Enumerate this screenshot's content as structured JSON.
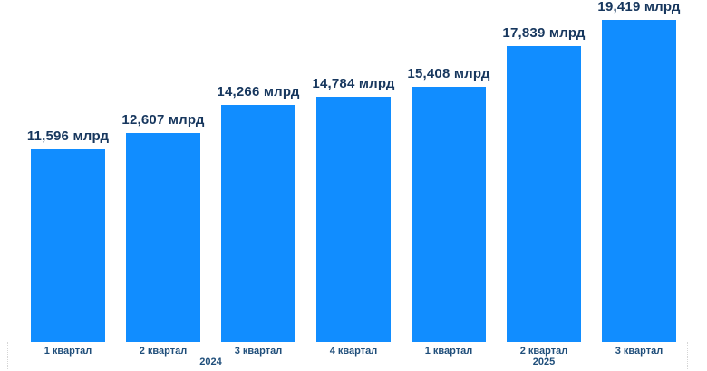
{
  "chart_data": {
    "type": "bar",
    "categories": [
      "1 квартал",
      "2 квартал",
      "3 квартал",
      "4 квартал",
      "1 квартал",
      "2 квартал",
      "3 квартал"
    ],
    "values": [
      11596,
      12607,
      14266,
      14784,
      15408,
      17839,
      19419
    ],
    "data_labels": [
      "11,596 млрд",
      "12,607 млрд",
      "14,266 млрд",
      "14,784 млрд",
      "15,408 млрд",
      "17,839 млрд",
      "19,419 млрд"
    ],
    "year_groups": [
      {
        "label": "2024",
        "start_index": 0,
        "count": 4
      },
      {
        "label": "2025",
        "start_index": 4,
        "count": 3
      }
    ],
    "ylim": [
      0,
      19419
    ],
    "grid": false,
    "legend": "none",
    "data_labels_visible": true,
    "colors": {
      "bar": "#118DFF",
      "value_label": "#17375E",
      "category_label": "#1F4E7A",
      "year_label": "#1F4E7A",
      "separator": "#D6D6D6",
      "background": "#FFFFFF"
    }
  }
}
